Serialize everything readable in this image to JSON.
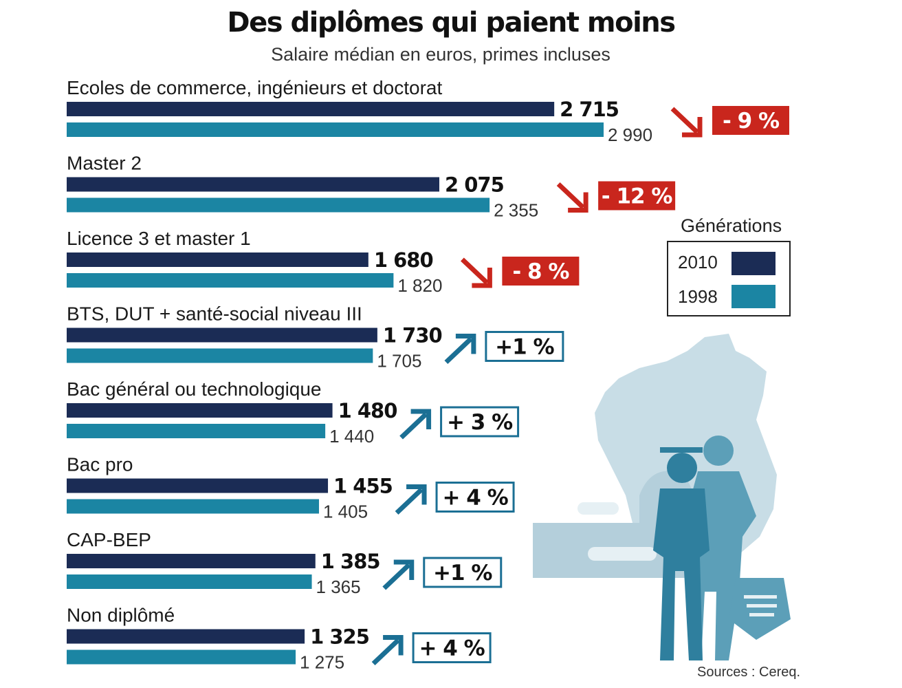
{
  "title": "Des diplômes qui paient moins",
  "subtitle": "Salaire médian en euros, primes incluses",
  "legend": {
    "title": "Générations",
    "items": [
      {
        "label": "2010",
        "color": "#1b2c55"
      },
      {
        "label": "1998",
        "color": "#1b85a3"
      }
    ]
  },
  "sources": "Sources : Cereq.",
  "chart_data": {
    "type": "bar",
    "orientation": "horizontal",
    "title": "Des diplômes qui paient moins",
    "subtitle": "Salaire médian en euros, primes incluses",
    "categories": [
      "Ecoles de commerce, ingénieurs et doctorat",
      "Master 2",
      "Licence 3 et master 1",
      "BTS, DUT + santé-social niveau III",
      "Bac général ou technologique",
      "Bac pro",
      "CAP-BEP",
      "Non diplômé"
    ],
    "series": [
      {
        "name": "2010",
        "color": "#1b2c55",
        "values": [
          2715,
          2075,
          1680,
          1730,
          1480,
          1455,
          1385,
          1325
        ],
        "labels": [
          "2 715",
          "2 075",
          "1 680",
          "1 730",
          "1 480",
          "1 455",
          "1 385",
          "1 325"
        ]
      },
      {
        "name": "1998",
        "color": "#1b85a3",
        "values": [
          2990,
          2355,
          1820,
          1705,
          1440,
          1405,
          1365,
          1275
        ],
        "labels": [
          "2 990",
          "2 355",
          "1 820",
          "1 705",
          "1 440",
          "1 405",
          "1 365",
          "1 275"
        ]
      }
    ],
    "changes": [
      "- 9 %",
      "- 12 %",
      "- 8 %",
      "+1 %",
      "+ 3 %",
      "+ 4 %",
      "+1 %",
      "+ 4 %"
    ],
    "change_direction": [
      "down",
      "down",
      "down",
      "up",
      "up",
      "up",
      "up",
      "up"
    ],
    "colors": {
      "negative": "#c9261d",
      "positive_arrow": "#1b6f94"
    },
    "legend_position": "right",
    "grid": false
  }
}
